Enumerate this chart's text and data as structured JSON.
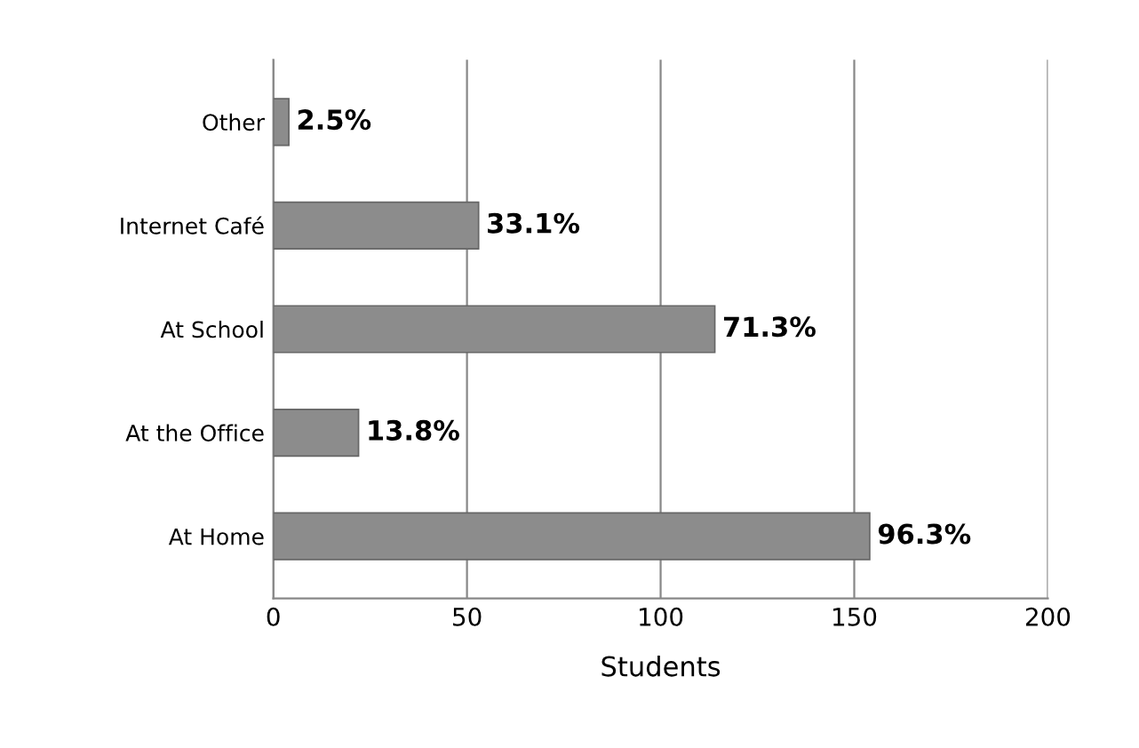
{
  "chart_data": {
    "type": "bar",
    "orientation": "horizontal",
    "xlabel": "Students",
    "categories": [
      "Other",
      "Internet Café",
      "At School",
      "At the Office",
      "At Home"
    ],
    "values": [
      4,
      53,
      114,
      22,
      154
    ],
    "annotations": [
      {
        "text": "2.5%",
        "x": 4,
        "y": "Other"
      },
      {
        "text": "33.1%",
        "x": 53,
        "y": "Internet Café"
      },
      {
        "text": "71.3%",
        "x": 114,
        "y": "At School"
      },
      {
        "text": "13.8%",
        "x": 22,
        "y": "At the Office"
      },
      {
        "text": "96.3%",
        "x": 154,
        "y": "At Home"
      }
    ],
    "color": "#8c8c8c",
    "xlim": [
      0,
      200
    ],
    "xticks": [
      0,
      50,
      100,
      150,
      200
    ],
    "grid": "x"
  }
}
